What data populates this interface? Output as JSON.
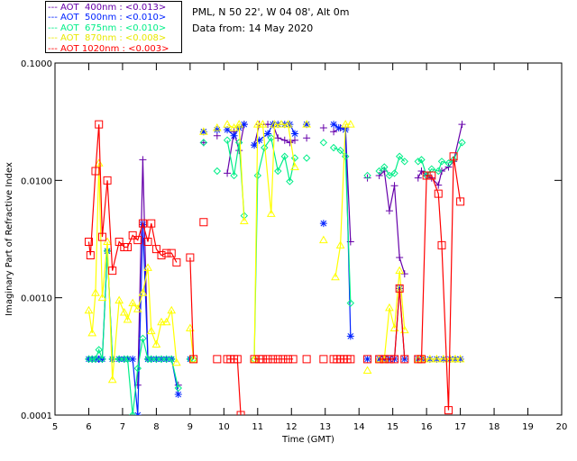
{
  "header": {
    "location": "PML, N 50 22', W 04 08', Alt 0m",
    "date": "Data from: 14 May 2020"
  },
  "chart_data": {
    "type": "line",
    "title": "",
    "xlabel": "Time (GMT)",
    "ylabel": "Imaginary Part of Refractive Index",
    "xlim": [
      5,
      20
    ],
    "ylim": [
      0.0001,
      0.1
    ],
    "yscale": "log",
    "xticks": [
      "5",
      "6",
      "7",
      "8",
      "9",
      "10",
      "11",
      "12",
      "13",
      "14",
      "15",
      "16",
      "17",
      "18",
      "19",
      "20"
    ],
    "yticks": [
      {
        "v": 0.1,
        "label": "0.1000"
      },
      {
        "v": 0.01,
        "label": "0.0100"
      },
      {
        "v": 0.001,
        "label": "0.0010"
      },
      {
        "v": 0.0001,
        "label": "0.0001"
      }
    ],
    "legend_position": "top-left-outside",
    "series": [
      {
        "name": "AOT  400nm : <0.013>",
        "color": "#6600aa",
        "marker": "plus",
        "points": [
          [
            6.0,
            0.0003
          ],
          [
            6.1,
            0.0003
          ],
          [
            6.2,
            0.0003
          ],
          [
            6.3,
            0.0003
          ],
          [
            6.4,
            0.0003
          ],
          null,
          [
            7.45,
            0.00018
          ],
          [
            7.6,
            0.015
          ],
          [
            7.75,
            0.0003
          ],
          null,
          [
            8.65,
            0.00018
          ],
          null,
          [
            9.4,
            0.021
          ],
          null,
          [
            9.8,
            0.024
          ],
          null,
          [
            10.1,
            0.0115
          ],
          [
            10.3,
            0.026
          ],
          [
            10.45,
            0.018
          ],
          [
            10.6,
            0.03
          ],
          null,
          [
            10.9,
            0.02
          ],
          [
            11.05,
            0.03
          ],
          [
            11.3,
            0.03
          ],
          [
            11.45,
            0.03
          ],
          [
            11.6,
            0.023
          ],
          [
            11.8,
            0.022
          ],
          [
            11.95,
            0.021
          ],
          [
            12.1,
            0.022
          ],
          null,
          [
            12.45,
            0.023
          ],
          null,
          [
            12.95,
            0.028
          ],
          null,
          [
            13.25,
            0.026
          ],
          [
            13.45,
            0.028
          ],
          [
            13.6,
            0.028
          ],
          [
            13.75,
            0.003
          ],
          null,
          [
            14.25,
            0.0105
          ],
          null,
          [
            14.6,
            0.011
          ],
          [
            14.75,
            0.012
          ],
          [
            14.9,
            0.0055
          ],
          [
            15.05,
            0.009
          ],
          [
            15.2,
            0.0022
          ],
          [
            15.35,
            0.0016
          ],
          null,
          [
            15.75,
            0.0105
          ],
          [
            15.85,
            0.012
          ],
          [
            16.0,
            0.011
          ],
          [
            16.15,
            0.0105
          ],
          [
            16.35,
            0.0091
          ],
          [
            16.45,
            0.012
          ],
          [
            16.65,
            0.013
          ],
          [
            16.8,
            0.0145
          ],
          [
            17.05,
            0.03
          ]
        ]
      },
      {
        "name": "AOT  500nm : <0.010>",
        "color": "#0022ff",
        "marker": "star",
        "points": [
          [
            6.0,
            0.0003
          ],
          [
            6.1,
            0.0003
          ],
          [
            6.2,
            0.0003
          ],
          [
            6.3,
            0.0003
          ],
          [
            6.4,
            0.0003
          ],
          [
            6.55,
            0.0025
          ],
          [
            6.7,
            0.0003
          ],
          [
            6.9,
            0.0003
          ],
          [
            7.05,
            0.0003
          ],
          [
            7.15,
            0.0003
          ],
          [
            7.3,
            0.0003
          ],
          [
            7.45,
            0.0001
          ],
          [
            7.6,
            0.0042
          ],
          [
            7.75,
            0.0003
          ],
          [
            7.85,
            0.0003
          ],
          [
            8.0,
            0.0003
          ],
          [
            8.15,
            0.0003
          ],
          [
            8.3,
            0.0003
          ],
          [
            8.45,
            0.0003
          ],
          [
            8.65,
            0.00015
          ],
          null,
          [
            9.0,
            0.0003
          ],
          null,
          [
            9.4,
            0.026
          ],
          null,
          [
            9.8,
            0.027
          ],
          null,
          [
            10.1,
            0.027
          ],
          [
            10.3,
            0.024
          ],
          [
            10.45,
            0.028
          ],
          [
            10.6,
            0.03
          ],
          null,
          [
            10.9,
            0.02
          ],
          [
            11.05,
            0.022
          ],
          [
            11.3,
            0.025
          ],
          [
            11.45,
            0.03
          ],
          [
            11.6,
            0.03
          ],
          [
            11.8,
            0.03
          ],
          [
            11.95,
            0.03
          ],
          [
            12.1,
            0.025
          ],
          null,
          [
            12.45,
            0.03
          ],
          null,
          [
            12.95,
            0.0043
          ],
          null,
          [
            13.25,
            0.03
          ],
          [
            13.4,
            0.028
          ],
          [
            13.6,
            0.027
          ],
          [
            13.75,
            0.00047
          ],
          null,
          [
            14.25,
            0.0003
          ],
          null,
          [
            14.6,
            0.0003
          ],
          [
            14.75,
            0.0003
          ],
          [
            14.9,
            0.0003
          ],
          [
            15.05,
            0.0003
          ],
          [
            15.2,
            0.0012
          ],
          [
            15.35,
            0.0003
          ],
          null,
          [
            15.75,
            0.0003
          ],
          [
            15.9,
            0.0003
          ],
          [
            16.1,
            0.0003
          ],
          [
            16.3,
            0.0003
          ],
          [
            16.5,
            0.0003
          ],
          [
            16.7,
            0.0003
          ],
          [
            16.85,
            0.0003
          ],
          [
            17.0,
            0.0003
          ]
        ]
      },
      {
        "name": "AOT  675nm : <0.010>",
        "color": "#00ee88",
        "marker": "diamond",
        "points": [
          [
            6.0,
            0.0003
          ],
          [
            6.1,
            0.0003
          ],
          [
            6.2,
            0.0003
          ],
          [
            6.3,
            0.00036
          ],
          [
            6.4,
            0.0003
          ],
          [
            6.55,
            0.0025
          ],
          [
            6.7,
            0.0003
          ],
          [
            6.9,
            0.0003
          ],
          [
            7.05,
            0.0003
          ],
          [
            7.15,
            0.0003
          ],
          [
            7.3,
            0.0001
          ],
          [
            7.45,
            0.00025
          ],
          [
            7.6,
            0.00045
          ],
          [
            7.75,
            0.0003
          ],
          [
            7.85,
            0.0003
          ],
          [
            8.0,
            0.0003
          ],
          [
            8.15,
            0.0003
          ],
          [
            8.3,
            0.0003
          ],
          [
            8.45,
            0.0003
          ],
          [
            8.65,
            0.00017
          ],
          null,
          [
            9.0,
            0.0003
          ],
          [
            9.1,
            0.0003
          ],
          null,
          [
            9.4,
            0.021
          ],
          null,
          [
            9.8,
            0.012
          ],
          null,
          [
            10.1,
            0.022
          ],
          [
            10.3,
            0.011
          ],
          [
            10.45,
            0.021
          ],
          [
            10.6,
            0.005
          ],
          null,
          [
            10.9,
            0.0003
          ],
          [
            11.0,
            0.011
          ],
          [
            11.2,
            0.019
          ],
          [
            11.4,
            0.023
          ],
          [
            11.6,
            0.012
          ],
          [
            11.8,
            0.016
          ],
          [
            11.95,
            0.0098
          ],
          [
            12.1,
            0.0155
          ],
          null,
          [
            12.45,
            0.0155
          ],
          null,
          [
            12.95,
            0.021
          ],
          null,
          [
            13.25,
            0.019
          ],
          [
            13.45,
            0.018
          ],
          [
            13.6,
            0.016
          ],
          [
            13.75,
            0.0009
          ],
          null,
          [
            14.25,
            0.011
          ],
          null,
          [
            14.6,
            0.012
          ],
          [
            14.75,
            0.013
          ],
          [
            14.9,
            0.011
          ],
          [
            15.05,
            0.0115
          ],
          [
            15.2,
            0.016
          ],
          [
            15.35,
            0.0145
          ],
          null,
          [
            15.75,
            0.0145
          ],
          [
            15.85,
            0.015
          ],
          [
            16.0,
            0.011
          ],
          [
            16.15,
            0.0125
          ],
          [
            16.35,
            0.012
          ],
          [
            16.45,
            0.0145
          ],
          [
            16.65,
            0.014
          ],
          [
            16.8,
            0.015
          ],
          [
            17.05,
            0.021
          ]
        ]
      },
      {
        "name": "AOT  870nm : <0.008>",
        "color": "#ffff00",
        "marker": "triangle",
        "points": [
          [
            6.0,
            0.00078
          ],
          [
            6.1,
            0.0005
          ],
          [
            6.2,
            0.0011
          ],
          [
            6.3,
            0.014
          ],
          [
            6.4,
            0.001
          ],
          [
            6.55,
            0.003
          ],
          [
            6.7,
            0.0002
          ],
          [
            6.9,
            0.00095
          ],
          [
            7.05,
            0.00075
          ],
          [
            7.15,
            0.00065
          ],
          [
            7.3,
            0.0009
          ],
          [
            7.45,
            0.0008
          ],
          [
            7.6,
            0.0011
          ],
          [
            7.75,
            0.0018
          ],
          [
            7.85,
            0.00052
          ],
          [
            8.0,
            0.0004
          ],
          [
            8.15,
            0.00062
          ],
          [
            8.3,
            0.00062
          ],
          [
            8.45,
            0.00078
          ],
          [
            8.6,
            0.00028
          ],
          null,
          [
            9.0,
            0.00055
          ],
          [
            9.1,
            0.0003
          ],
          null,
          [
            9.4,
            0.026
          ],
          null,
          [
            9.8,
            0.028
          ],
          null,
          [
            10.1,
            0.03
          ],
          [
            10.3,
            0.028
          ],
          [
            10.45,
            0.03
          ],
          [
            10.6,
            0.0045
          ],
          null,
          [
            10.9,
            0.0003
          ],
          [
            11.0,
            0.03
          ],
          [
            11.15,
            0.03
          ],
          [
            11.4,
            0.0052
          ],
          [
            11.5,
            0.03
          ],
          [
            11.7,
            0.03
          ],
          [
            11.9,
            0.03
          ],
          [
            12.1,
            0.013
          ],
          null,
          [
            12.45,
            0.03
          ],
          null,
          [
            12.95,
            0.0031
          ],
          null,
          [
            13.3,
            0.0015
          ],
          [
            13.45,
            0.0028
          ],
          [
            13.6,
            0.03
          ],
          [
            13.75,
            0.03
          ],
          null,
          [
            14.25,
            0.00024
          ],
          null,
          [
            14.6,
            0.0003
          ],
          [
            14.75,
            0.0003
          ],
          [
            14.9,
            0.00082
          ],
          [
            15.05,
            0.00055
          ],
          [
            15.2,
            0.0017
          ],
          [
            15.35,
            0.00053
          ],
          null,
          [
            15.75,
            0.0003
          ],
          [
            15.9,
            0.0003
          ],
          [
            16.1,
            0.0003
          ],
          [
            16.3,
            0.0003
          ],
          [
            16.5,
            0.0003
          ],
          [
            16.7,
            0.0003
          ],
          [
            16.85,
            0.0003
          ],
          [
            17.0,
            0.0003
          ]
        ]
      },
      {
        "name": "AOT 1020nm : <0.003>",
        "color": "#ff0000",
        "marker": "square",
        "points": [
          [
            6.0,
            0.003
          ],
          [
            6.05,
            0.0023
          ],
          [
            6.2,
            0.012
          ],
          [
            6.3,
            0.03
          ],
          [
            6.4,
            0.0033
          ],
          [
            6.55,
            0.01
          ],
          [
            6.7,
            0.0017
          ],
          [
            6.9,
            0.003
          ],
          [
            7.05,
            0.0027
          ],
          [
            7.15,
            0.0027
          ],
          [
            7.3,
            0.0034
          ],
          [
            7.45,
            0.0031
          ],
          [
            7.6,
            0.0043
          ],
          [
            7.75,
            0.003
          ],
          [
            7.85,
            0.0043
          ],
          [
            8.0,
            0.0026
          ],
          [
            8.15,
            0.0023
          ],
          [
            8.3,
            0.0024
          ],
          [
            8.45,
            0.0024
          ],
          [
            8.6,
            0.002
          ],
          null,
          [
            9.0,
            0.0022
          ],
          [
            9.1,
            0.0003
          ],
          null,
          [
            9.4,
            0.0044
          ],
          null,
          [
            9.8,
            0.0003
          ],
          null,
          [
            10.1,
            0.0003
          ],
          [
            10.2,
            0.0003
          ],
          [
            10.3,
            0.0003
          ],
          [
            10.4,
            0.0003
          ],
          [
            10.5,
            0.0001
          ],
          null,
          [
            10.9,
            0.0003
          ],
          [
            11.05,
            0.0003
          ],
          [
            11.15,
            0.0003
          ],
          [
            11.3,
            0.0003
          ],
          [
            11.45,
            0.0003
          ],
          [
            11.6,
            0.0003
          ],
          [
            11.75,
            0.0003
          ],
          [
            11.9,
            0.0003
          ],
          [
            12.05,
            0.0003
          ],
          null,
          [
            12.45,
            0.0003
          ],
          null,
          [
            12.95,
            0.0003
          ],
          null,
          [
            13.25,
            0.0003
          ],
          [
            13.35,
            0.0003
          ],
          [
            13.45,
            0.0003
          ],
          [
            13.55,
            0.0003
          ],
          [
            13.65,
            0.0003
          ],
          [
            13.75,
            0.0003
          ],
          null,
          [
            14.25,
            0.0003
          ],
          null,
          [
            14.6,
            0.0003
          ],
          [
            14.75,
            0.0003
          ],
          [
            14.9,
            0.0003
          ],
          [
            15.05,
            0.0003
          ],
          [
            15.2,
            0.0012
          ],
          [
            15.35,
            0.0003
          ],
          null,
          [
            15.75,
            0.0003
          ],
          [
            15.85,
            0.0003
          ],
          [
            16.0,
            0.011
          ],
          [
            16.15,
            0.011
          ],
          [
            16.35,
            0.0077
          ],
          [
            16.45,
            0.0028
          ],
          [
            16.65,
            0.00011
          ],
          [
            16.8,
            0.016
          ],
          [
            17.0,
            0.0066
          ]
        ]
      }
    ]
  }
}
